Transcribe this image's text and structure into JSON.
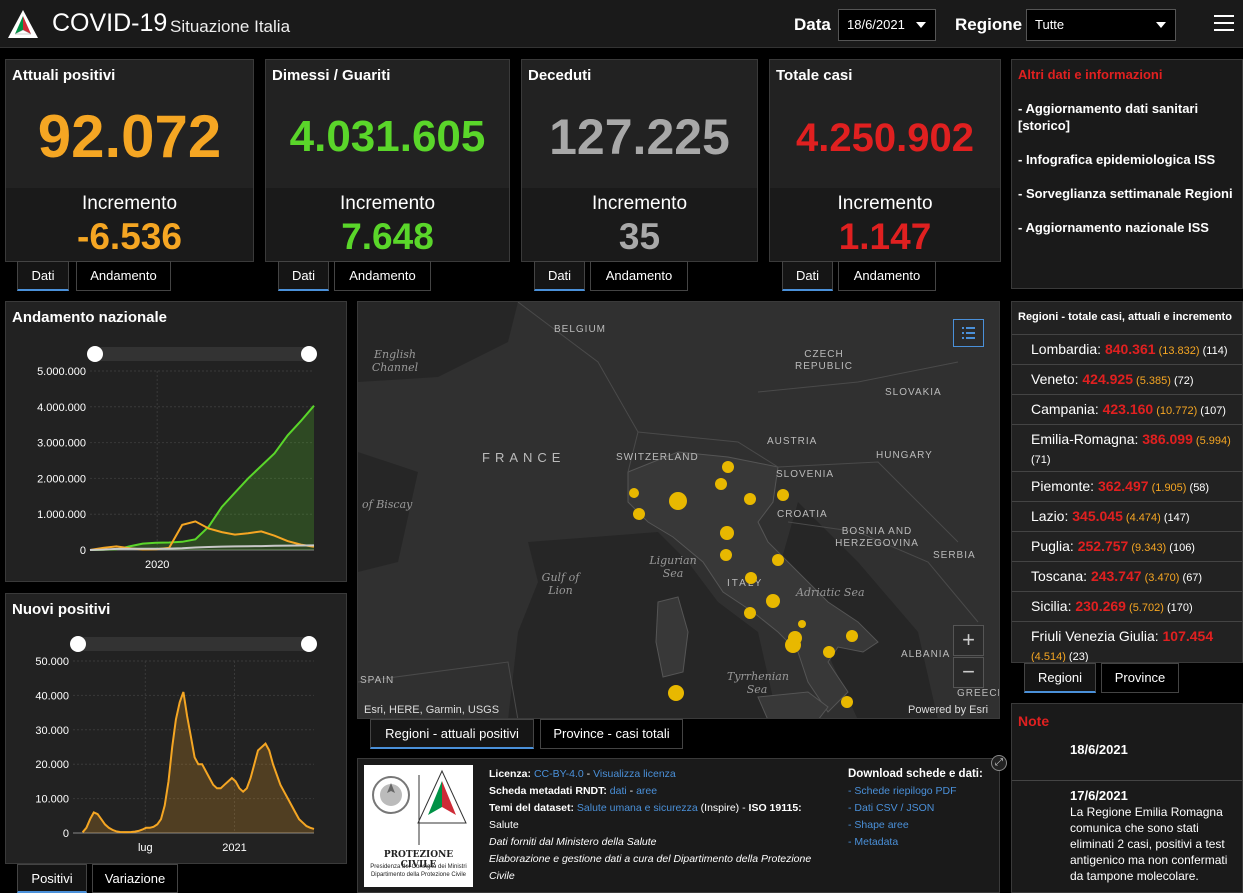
{
  "header": {
    "title": "COVID-19",
    "subtitle": "Situazione Italia",
    "data_label": "Data",
    "data_value": "18/6/2021",
    "regione_label": "Regione",
    "regione_value": "Tutte"
  },
  "cards": [
    {
      "title": "Attuali positivi",
      "value": "92.072",
      "inc_label": "Incremento",
      "inc": "-6.536",
      "color": "#f5a623",
      "tab1": "Dati",
      "tab2": "Andamento"
    },
    {
      "title": "Dimessi / Guariti",
      "value": "4.031.605",
      "inc_label": "Incremento",
      "inc": "7.648",
      "color": "#5ad62a",
      "tab1": "Dati",
      "tab2": "Andamento"
    },
    {
      "title": "Deceduti",
      "value": "127.225",
      "inc_label": "Incremento",
      "inc": "35",
      "color": "#a8a8a8",
      "tab1": "Dati",
      "tab2": "Andamento"
    },
    {
      "title": "Totale casi",
      "value": "4.250.902",
      "inc_label": "Incremento",
      "inc": "1.147",
      "color": "#e02020",
      "tab1": "Dati",
      "tab2": "Andamento"
    }
  ],
  "info": {
    "title": "Altri dati e informazioni",
    "items": [
      "- Aggiornamento dati sanitari [storico]",
      "- Infografica epidemiologica ISS",
      "- Sorveglianza settimanale Regioni",
      "- Aggiornamento nazionale ISS"
    ]
  },
  "chart_data": [
    {
      "type": "line",
      "title": "Andamento nazionale",
      "yticks": [
        "5.000.000",
        "4.000.000",
        "3.000.000",
        "2.000.000",
        "1.000.000",
        "0"
      ],
      "xticks": [
        "2020"
      ],
      "ylim": [
        0,
        5000000
      ],
      "series": [
        {
          "color": "#5ad62a",
          "fill": true,
          "values": [
            0,
            5000,
            20000,
            100000,
            180000,
            200000,
            210000,
            230000,
            300000,
            650000,
            1200000,
            1600000,
            2000000,
            2350000,
            2700000,
            3200000,
            3600000,
            4031605
          ]
        },
        {
          "color": "#f5a623",
          "fill": false,
          "values": [
            0,
            60000,
            100000,
            50000,
            15000,
            20000,
            60000,
            700000,
            800000,
            600000,
            500000,
            430000,
            470000,
            520000,
            400000,
            250000,
            150000,
            92072
          ]
        },
        {
          "color": "#c8c8c8",
          "fill": false,
          "values": [
            0,
            10000,
            30000,
            34000,
            35000,
            36000,
            38000,
            50000,
            70000,
            85000,
            95000,
            100000,
            105000,
            110000,
            118000,
            123000,
            126000,
            127225
          ]
        }
      ]
    },
    {
      "type": "area",
      "title": "Nuovi positivi",
      "yticks": [
        "50.000",
        "40.000",
        "30.000",
        "20.000",
        "10.000",
        "0"
      ],
      "xticks": [
        "lug",
        "2021"
      ],
      "ylim": [
        0,
        50000
      ],
      "series": [
        {
          "color": "#f5a623",
          "values": [
            200,
            1500,
            4000,
            6000,
            5500,
            4000,
            2500,
            1500,
            900,
            500,
            300,
            250,
            250,
            300,
            400,
            600,
            1000,
            1500,
            1500,
            1800,
            2500,
            4000,
            8000,
            15000,
            25000,
            33000,
            38000,
            41000,
            34000,
            28000,
            22000,
            20000,
            20000,
            18000,
            16000,
            14000,
            13000,
            13000,
            14000,
            15000,
            16000,
            15000,
            13000,
            12000,
            13000,
            16000,
            20000,
            24000,
            25000,
            26000,
            24000,
            20000,
            17000,
            14000,
            12000,
            10000,
            8000,
            6000,
            4000,
            3000,
            2000,
            1500,
            1200
          ]
        }
      ]
    }
  ],
  "chart_tabs": {
    "tab1": "Positivi",
    "tab2": "Variazione"
  },
  "map": {
    "labels": [
      "BELGIUM",
      "CZECH REPUBLIC",
      "SLOVAKIA",
      "FRANCE",
      "SWITZERLAND",
      "AUSTRIA",
      "SLOVENIA",
      "HUNGARY",
      "CROATIA",
      "BOSNIA AND HERZEGOVINA",
      "SERBIA",
      "ITALY",
      "ALBANIA",
      "SPAIN",
      "GREECE"
    ],
    "seas": [
      "English Channel",
      "of Biscay",
      "Ligurian Sea",
      "Gulf of Lion",
      "Adriatic Sea",
      "Tyrrhenian Sea"
    ],
    "credit_left": "Esri, HERE, Garmin, USGS",
    "credit_right": "Powered by Esri",
    "dot_color": "#e8b800",
    "tab1": "Regioni - attuali positivi",
    "tab2": "Province - casi totali"
  },
  "regions": {
    "title": "Regioni - totale casi, attuali e incremento",
    "rows": [
      {
        "name": "Lombardia",
        "total": "840.361",
        "cur": "(13.832)",
        "inc": "(114)"
      },
      {
        "name": "Veneto",
        "total": "424.925",
        "cur": "(5.385)",
        "inc": "(72)"
      },
      {
        "name": "Campania",
        "total": "423.160",
        "cur": "(10.772)",
        "inc": "(107)"
      },
      {
        "name": "Emilia-Romagna",
        "total": "386.099",
        "cur": "(5.994)",
        "inc": "(71)"
      },
      {
        "name": "Piemonte",
        "total": "362.497",
        "cur": "(1.905)",
        "inc": "(58)"
      },
      {
        "name": "Lazio",
        "total": "345.045",
        "cur": "(4.474)",
        "inc": "(147)"
      },
      {
        "name": "Puglia",
        "total": "252.757",
        "cur": "(9.343)",
        "inc": "(106)"
      },
      {
        "name": "Toscana",
        "total": "243.747",
        "cur": "(3.470)",
        "inc": "(67)"
      },
      {
        "name": "Sicilia",
        "total": "230.269",
        "cur": "(5.702)",
        "inc": "(170)"
      },
      {
        "name": "Friuli Venezia Giulia",
        "total": "107.454",
        "cur": "(4.514)",
        "inc": "(23)"
      }
    ],
    "tab1": "Regioni",
    "tab2": "Province"
  },
  "note": {
    "title": "Note",
    "date1": "18/6/2021",
    "date2": "17/6/2021",
    "text2": "La Regione Emilia Romagna comunica che sono stati eliminati 2 casi, positivi a test antigenico ma non confermati da tampone molecolare."
  },
  "bottom": {
    "logo_text1": "PROTEZIONE CIVILE",
    "logo_text2": "Presidenza del Consiglio dei Ministri",
    "logo_text3": "Dipartimento della Protezione Civile",
    "lic_label": "Licenza:",
    "lic_link": "CC-BY-4.0",
    "lic_sep": "-",
    "lic_link2": "Visualizza licenza",
    "rndt_label": "Scheda metadati RNDT:",
    "rndt_link1": "dati",
    "rndt_sep": "-",
    "rndt_link2": "aree",
    "temi_label": "Temi del dataset:",
    "temi_link": "Salute umana e sicurezza",
    "temi_rest": "(Inspire) -",
    "temi_iso": "ISO 19115:",
    "temi_last": "Salute",
    "line5": "Dati forniti dal Ministero della Salute",
    "line6": "Elaborazione e gestione dati a cura del Dipartimento della Protezione",
    "line7": "Civile",
    "dl_title": "Download schede e dati:",
    "dl1": "- Schede riepilogo PDF",
    "dl2": "- Dati CSV / JSON",
    "dl3": "- Shape aree",
    "dl4": "- Metadata"
  }
}
